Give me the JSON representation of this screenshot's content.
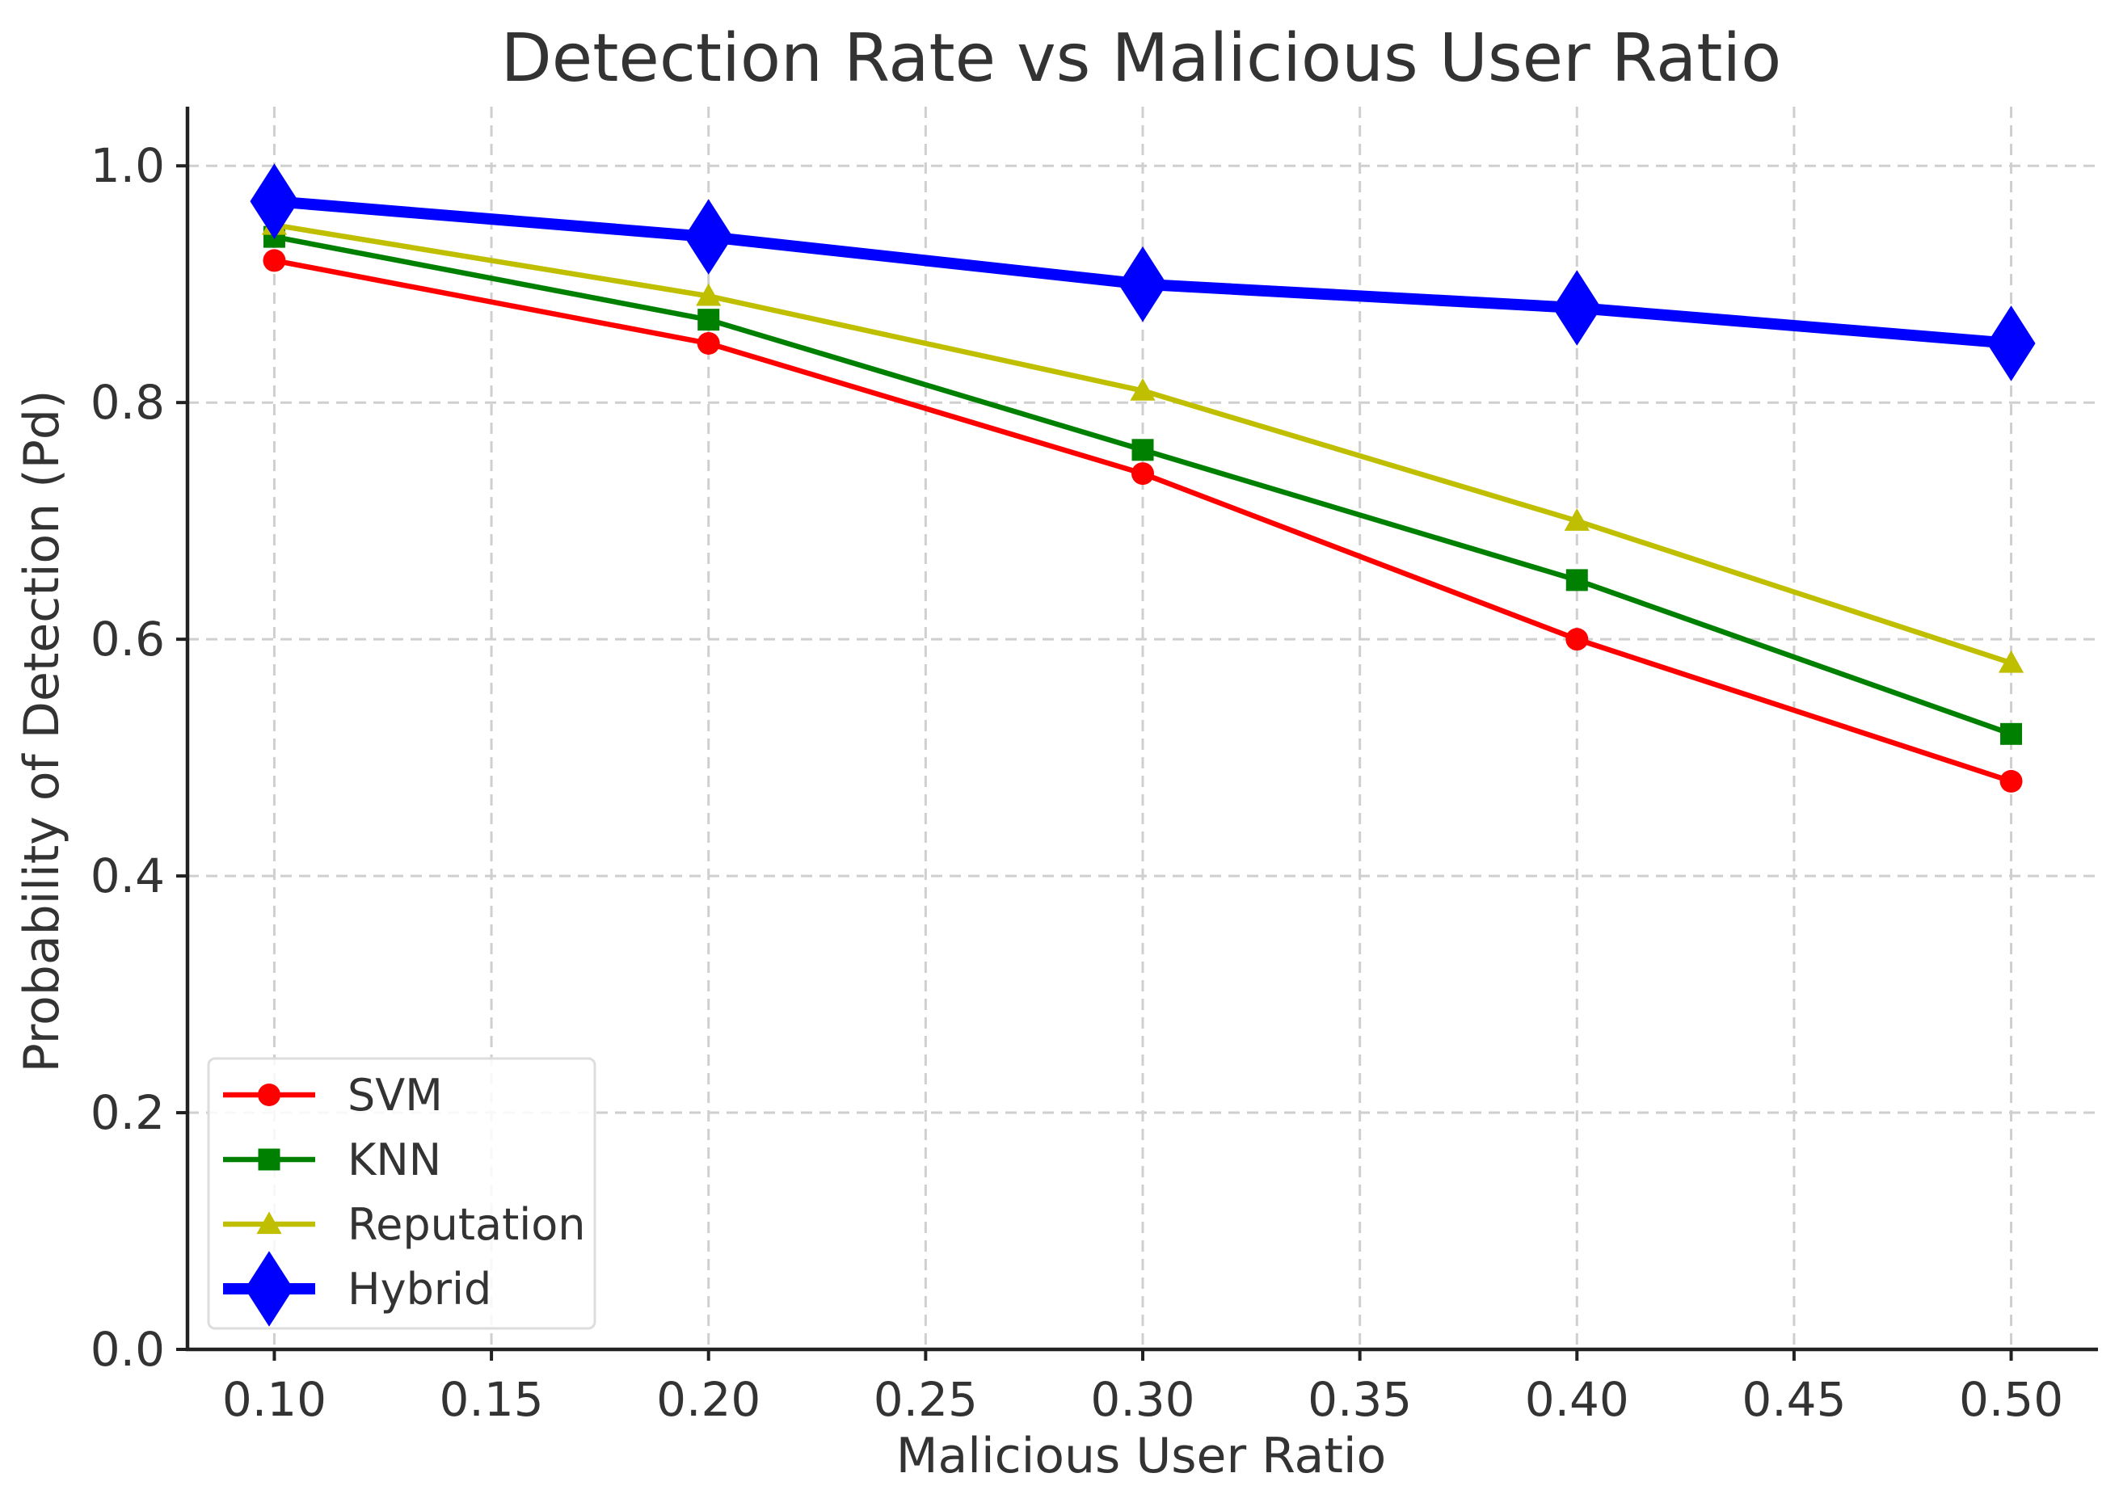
{
  "chart_data": {
    "type": "line",
    "title": "Detection Rate vs Malicious User Ratio",
    "xlabel": "Malicious User Ratio",
    "ylabel": "Probability of Detection (Pd)",
    "x": [
      0.1,
      0.2,
      0.3,
      0.4,
      0.5
    ],
    "xlim": [
      0.08,
      0.52
    ],
    "ylim": [
      0.0,
      1.05
    ],
    "xticks": [
      "0.10",
      "0.15",
      "0.20",
      "0.25",
      "0.30",
      "0.35",
      "0.40",
      "0.45",
      "0.50"
    ],
    "yticks": [
      "0.0",
      "0.2",
      "0.4",
      "0.6",
      "0.8",
      "1.0"
    ],
    "grid": true,
    "legend_position": "lower-left",
    "series": [
      {
        "name": "SVM",
        "values": [
          0.92,
          0.85,
          0.74,
          0.6,
          0.48
        ],
        "color": "#ff0000",
        "marker": "circle"
      },
      {
        "name": "KNN",
        "values": [
          0.94,
          0.87,
          0.76,
          0.65,
          0.52
        ],
        "color": "#008000",
        "marker": "square"
      },
      {
        "name": "Reputation",
        "values": [
          0.95,
          0.89,
          0.81,
          0.7,
          0.58
        ],
        "color": "#bfbf00",
        "marker": "triangle"
      },
      {
        "name": "Hybrid",
        "values": [
          0.97,
          0.94,
          0.9,
          0.88,
          0.85
        ],
        "color": "#0000ff",
        "marker": "diamond"
      }
    ]
  }
}
